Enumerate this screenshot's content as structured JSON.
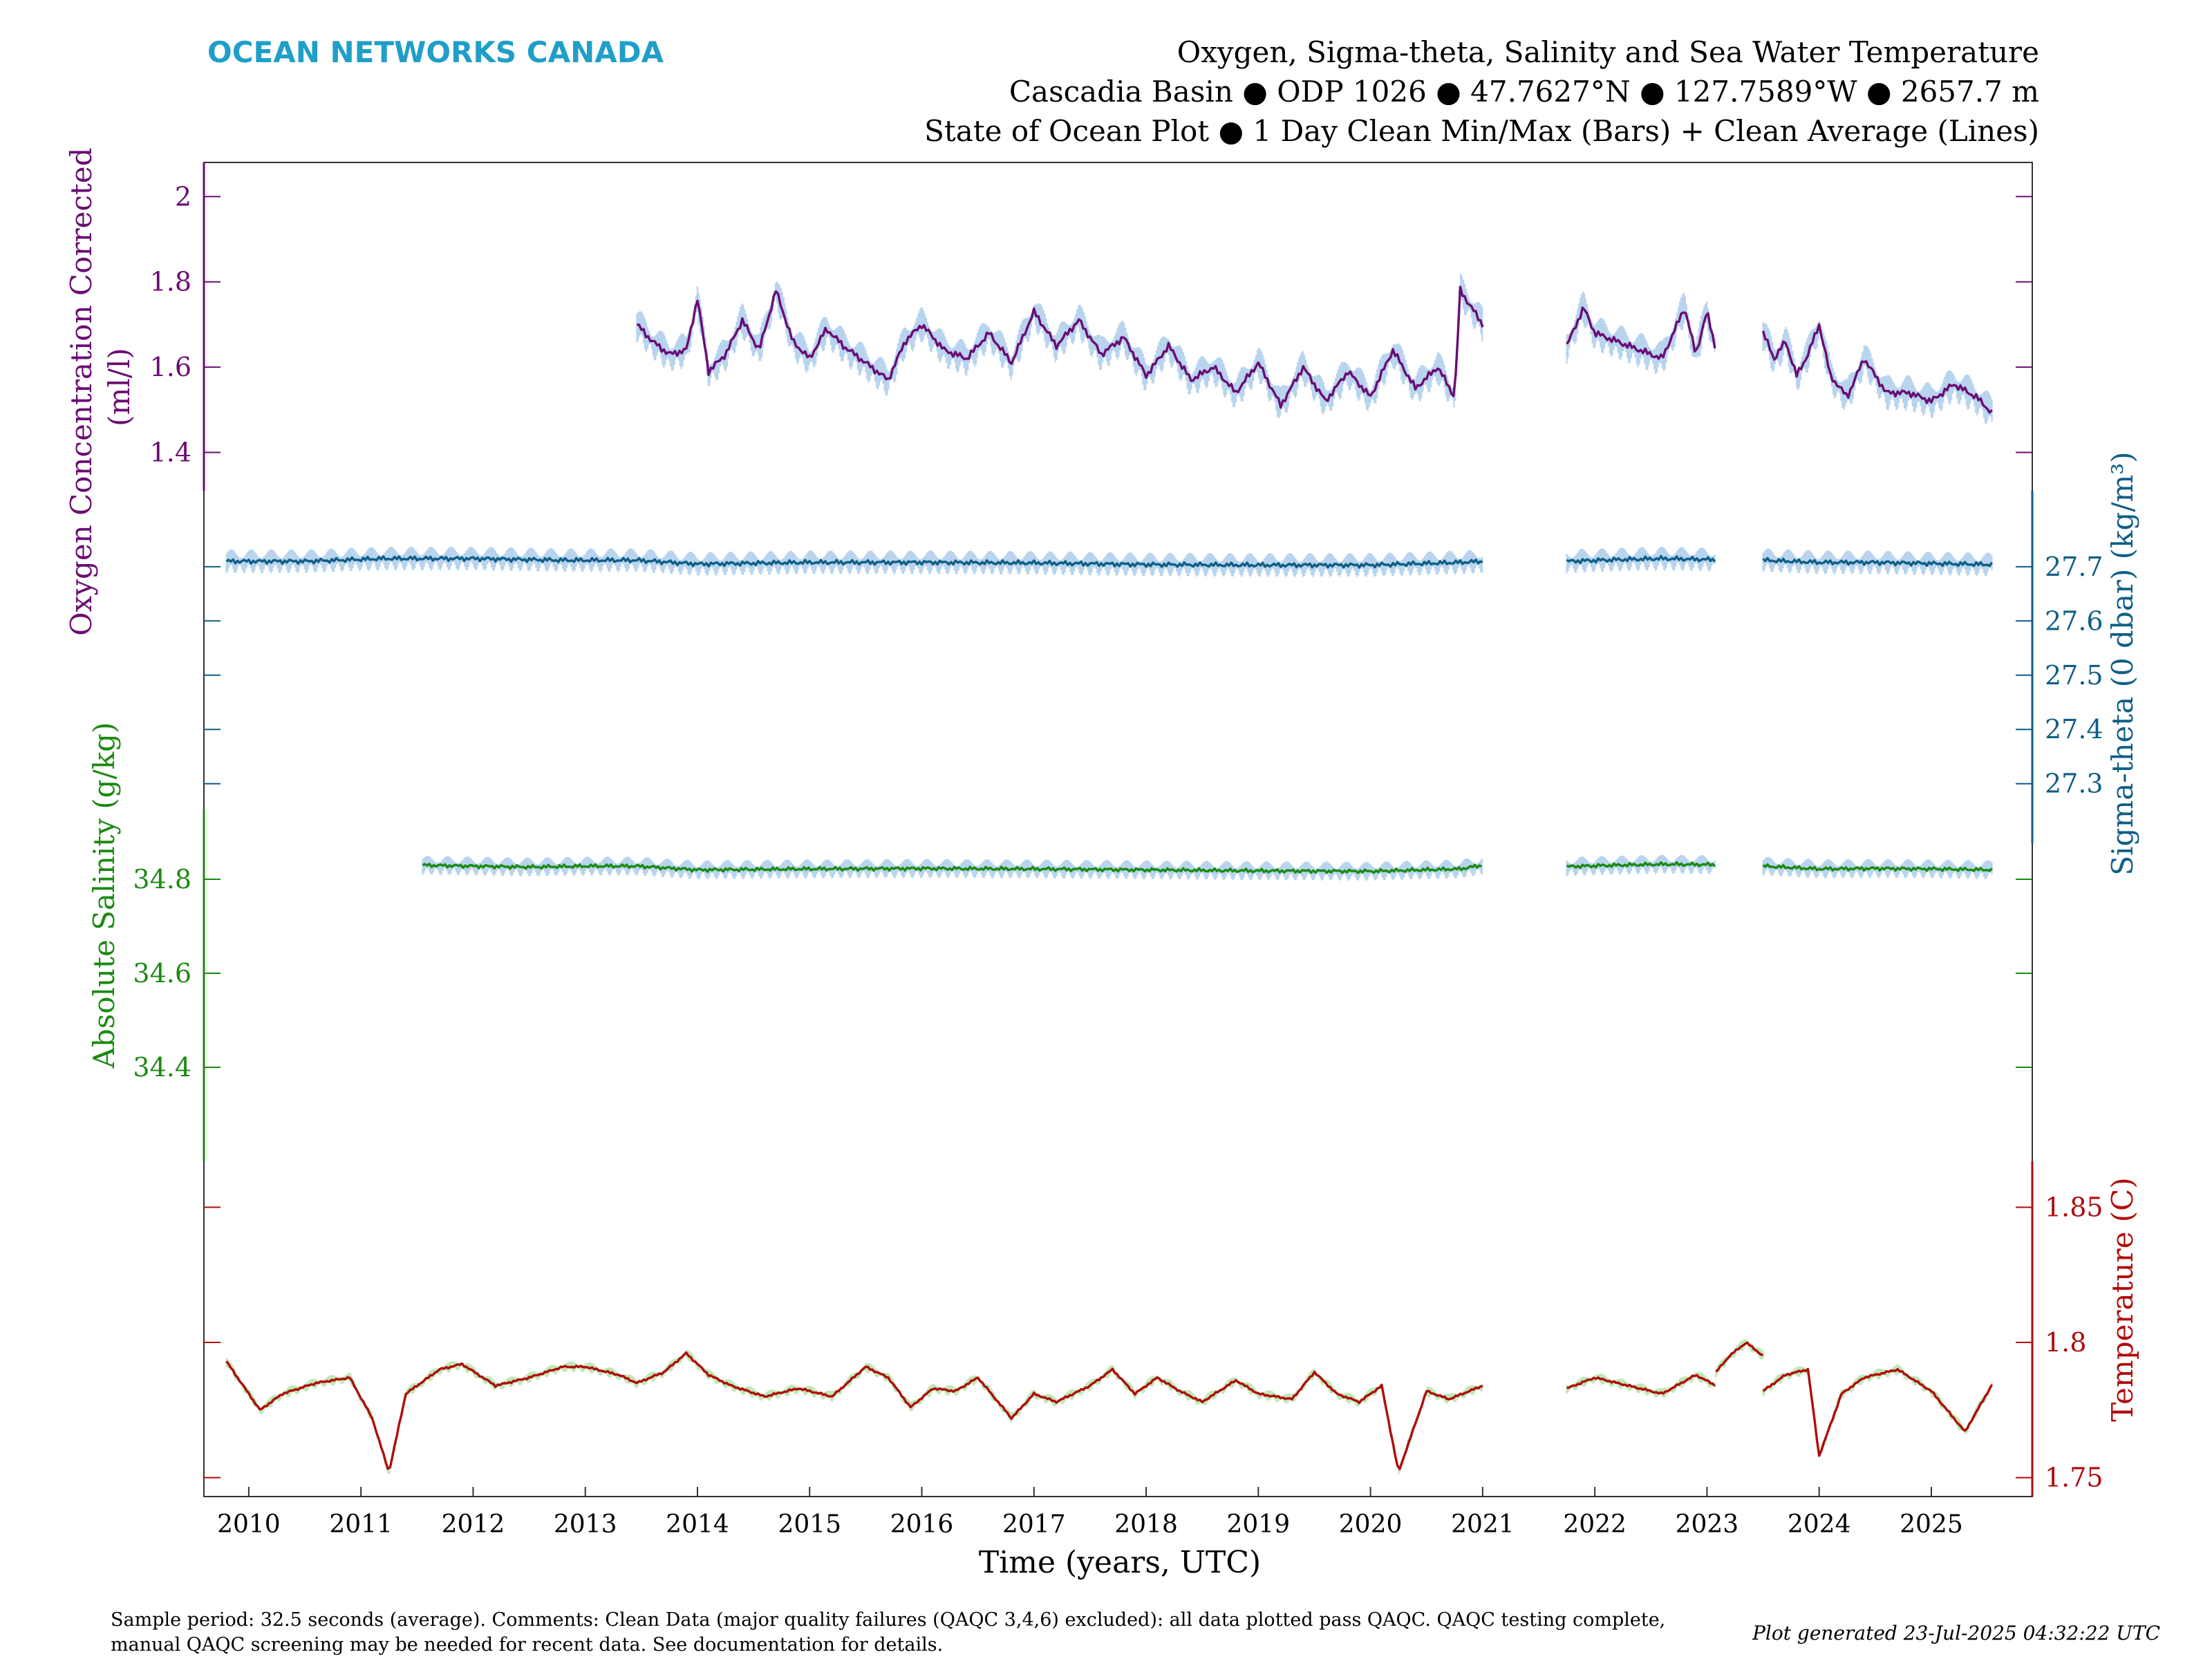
{
  "brand": "OCEAN NETWORKS CANADA",
  "title_lines": [
    "Oxygen, Sigma-theta, Salinity and Sea Water Temperature",
    "Cascadia Basin ● ODP 1026 ● 47.7627°N ● 127.7589°W ● 2657.7 m",
    "State of Ocean Plot ● 1 Day Clean Min/Max (Bars) + Clean Average (Lines)"
  ],
  "footer_left": [
    "Sample period: 32.5 seconds (average). Comments: Clean Data (major quality failures (QAQC 3,4,6) excluded): all data plotted pass QAQC. QAQC testing complete,",
    "manual QAQC screening may be needed for recent data. See documentation for details."
  ],
  "footer_right": "Plot generated 23-Jul-2025 04:32:22 UTC",
  "colors": {
    "brand": "#1f9fc8",
    "oxygen": "#6a0d73",
    "sigma": "#0f5e86",
    "salinity": "#1b8a10",
    "temperature": "#b00c0c",
    "bar_blue": "#b8d4ee",
    "bar_green": "#bfe8b6"
  },
  "chart_data": {
    "type": "line",
    "xlabel": "Time (years, UTC)",
    "x_ticks": [
      "2010",
      "2011",
      "2012",
      "2013",
      "2014",
      "2015",
      "2016",
      "2017",
      "2018",
      "2019",
      "2020",
      "2021",
      "2022",
      "2023",
      "2024",
      "2025"
    ],
    "xlim": [
      2009.6,
      2025.9
    ],
    "grid": false,
    "panels": [
      {
        "name": "oxygen",
        "ylabel": "Oxygen Concentration Corrected (ml/l)",
        "axis_side": "left",
        "ylim": [
          1.31,
          2.08
        ],
        "y_ticks": [
          "1.4",
          "1.6",
          "1.8",
          "2"
        ],
        "segments": [
          {
            "x": [
              2013.46,
              2013.6,
              2013.75,
              2013.9,
              2014.0,
              2014.1,
              2014.25,
              2014.4,
              2014.55,
              2014.7,
              2014.85,
              2015.0,
              2015.15,
              2015.3,
              2015.5,
              2015.7,
              2015.85,
              2016.0,
              2016.2,
              2016.4,
              2016.6,
              2016.8,
              2017.0,
              2017.2,
              2017.4,
              2017.6,
              2017.8,
              2018.0,
              2018.2,
              2018.4,
              2018.6,
              2018.8,
              2019.0,
              2019.2,
              2019.4,
              2019.6,
              2019.8,
              2020.0,
              2020.2,
              2020.4,
              2020.6,
              2020.75,
              2020.8,
              2020.9,
              2021.0
            ],
            "y": [
              1.7,
              1.66,
              1.63,
              1.64,
              1.76,
              1.59,
              1.63,
              1.71,
              1.64,
              1.78,
              1.66,
              1.62,
              1.69,
              1.65,
              1.61,
              1.57,
              1.66,
              1.7,
              1.64,
              1.62,
              1.68,
              1.61,
              1.73,
              1.65,
              1.71,
              1.63,
              1.67,
              1.58,
              1.65,
              1.57,
              1.6,
              1.54,
              1.61,
              1.51,
              1.6,
              1.52,
              1.59,
              1.53,
              1.64,
              1.55,
              1.6,
              1.53,
              1.78,
              1.74,
              1.7
            ]
          },
          {
            "x": [
              2021.75,
              2021.9,
              2022.0,
              2022.2,
              2022.4,
              2022.6,
              2022.8,
              2022.9,
              2023.0,
              2023.08
            ],
            "y": [
              1.65,
              1.74,
              1.68,
              1.66,
              1.64,
              1.62,
              1.74,
              1.63,
              1.73,
              1.64
            ]
          },
          {
            "x": [
              2023.5,
              2023.6,
              2023.7,
              2023.8,
              2023.9,
              2024.0,
              2024.1,
              2024.25,
              2024.4,
              2024.6,
              2024.8,
              2025.0,
              2025.2,
              2025.4,
              2025.55
            ],
            "y": [
              1.68,
              1.62,
              1.66,
              1.58,
              1.63,
              1.7,
              1.58,
              1.53,
              1.62,
              1.54,
              1.54,
              1.52,
              1.56,
              1.53,
              1.49
            ]
          }
        ]
      },
      {
        "name": "sigma_theta",
        "ylabel": "Sigma-theta (0 dbar) (kg/m³)",
        "axis_side": "right",
        "ylim": [
          27.19,
          27.84
        ],
        "y_ticks": [
          "27.3",
          "27.4",
          "27.5",
          "27.6",
          "27.7"
        ],
        "segments": [
          {
            "x": [
              2009.8,
              2010.5,
              2011.2,
              2012.0,
              2012.8,
              2013.46,
              2014.0,
              2015.0,
              2016.0,
              2017.0,
              2018.0,
              2019.0,
              2020.0,
              2020.8,
              2021.0
            ],
            "y": [
              27.71,
              27.71,
              27.715,
              27.715,
              27.712,
              27.712,
              27.705,
              27.708,
              27.708,
              27.707,
              27.704,
              27.703,
              27.703,
              27.708,
              27.71
            ]
          },
          {
            "x": [
              2021.75,
              2022.2,
              2022.6,
              2023.08
            ],
            "y": [
              27.71,
              27.713,
              27.715,
              27.713
            ]
          },
          {
            "x": [
              2023.5,
              2024.0,
              2024.5,
              2025.0,
              2025.55
            ],
            "y": [
              27.712,
              27.708,
              27.708,
              27.706,
              27.704
            ]
          }
        ]
      },
      {
        "name": "salinity",
        "ylabel": "Absolute Salinity (g/kg)",
        "axis_side": "left",
        "ylim": [
          34.2,
          34.95
        ],
        "y_ticks": [
          "34.4",
          "34.6",
          "34.8"
        ],
        "segments": [
          {
            "x": [
              2011.55,
              2012.0,
              2012.5,
              2013.0,
              2013.46,
              2014.0,
              2015.0,
              2016.0,
              2017.0,
              2018.0,
              2019.0,
              2020.0,
              2020.8,
              2021.0
            ],
            "y": [
              34.83,
              34.828,
              34.826,
              34.828,
              34.828,
              34.82,
              34.822,
              34.823,
              34.822,
              34.82,
              34.818,
              34.817,
              34.822,
              34.83
            ]
          },
          {
            "x": [
              2021.75,
              2022.2,
              2022.6,
              2023.08
            ],
            "y": [
              34.827,
              34.83,
              34.832,
              34.831
            ]
          },
          {
            "x": [
              2023.5,
              2024.0,
              2024.5,
              2025.0,
              2025.55
            ],
            "y": [
              34.828,
              34.822,
              34.823,
              34.822,
              34.82
            ]
          }
        ]
      },
      {
        "name": "temperature",
        "ylabel": "Temperature (C)",
        "axis_side": "right",
        "ylim": [
          1.743,
          1.867
        ],
        "y_ticks": [
          "1.75",
          "1.8",
          "1.85"
        ],
        "segments": [
          {
            "x": [
              2009.8,
              2009.9,
              2010.1,
              2010.3,
              2010.6,
              2010.9,
              2011.1,
              2011.25,
              2011.4,
              2011.7,
              2011.9,
              2012.2,
              2012.5,
              2012.8,
              2013.0,
              2013.3,
              2013.46,
              2013.7,
              2013.9,
              2014.1,
              2014.3,
              2014.6,
              2014.9,
              2015.2,
              2015.5,
              2015.7,
              2015.9,
              2016.1,
              2016.3,
              2016.5,
              2016.8,
              2017.0,
              2017.2,
              2017.5,
              2017.7,
              2017.9,
              2018.1,
              2018.3,
              2018.5,
              2018.8,
              2019.0,
              2019.3,
              2019.5,
              2019.7,
              2019.9,
              2020.1,
              2020.25,
              2020.5,
              2020.7,
              2021.0
            ],
            "y": [
              1.793,
              1.787,
              1.775,
              1.781,
              1.785,
              1.787,
              1.772,
              1.752,
              1.781,
              1.79,
              1.792,
              1.784,
              1.787,
              1.791,
              1.791,
              1.788,
              1.785,
              1.789,
              1.796,
              1.788,
              1.784,
              1.78,
              1.783,
              1.78,
              1.791,
              1.787,
              1.776,
              1.783,
              1.782,
              1.787,
              1.772,
              1.781,
              1.778,
              1.784,
              1.79,
              1.781,
              1.787,
              1.782,
              1.778,
              1.786,
              1.781,
              1.779,
              1.789,
              1.781,
              1.778,
              1.784,
              1.752,
              1.782,
              1.779,
              1.784
            ]
          },
          {
            "x": [
              2021.75,
              2022.0,
              2022.3,
              2022.6,
              2022.9,
              2023.08
            ],
            "y": [
              1.783,
              1.787,
              1.784,
              1.781,
              1.788,
              1.784
            ]
          },
          {
            "x": [
              2023.08,
              2023.2,
              2023.35,
              2023.5
            ],
            "y": [
              1.789,
              1.795,
              1.8,
              1.795
            ]
          },
          {
            "x": [
              2023.5,
              2023.7,
              2023.9,
              2024.0,
              2024.2,
              2024.4,
              2024.7,
              2025.0,
              2025.3,
              2025.55
            ],
            "y": [
              1.782,
              1.788,
              1.79,
              1.758,
              1.781,
              1.787,
              1.79,
              1.782,
              1.767,
              1.785
            ]
          }
        ]
      }
    ]
  }
}
